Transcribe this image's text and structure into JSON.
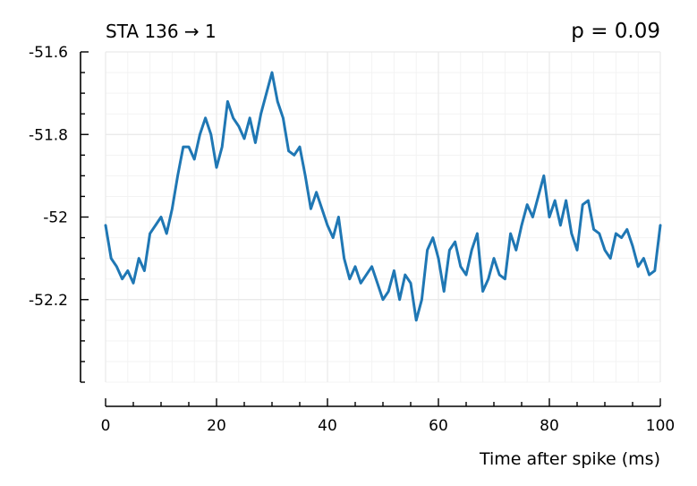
{
  "chart_data": {
    "type": "line",
    "title_left": "STA 136 → 1",
    "title_right": "p = 0.09",
    "xlabel": "Time after spike (ms)",
    "ylabel": "",
    "xlim": [
      0,
      100
    ],
    "ylim": [
      -52.4,
      -51.6
    ],
    "x_ticks": [
      0,
      20,
      40,
      60,
      80,
      100
    ],
    "x_tick_labels": [
      "0",
      "20",
      "40",
      "60",
      "80",
      "100"
    ],
    "y_ticks": [
      -51.6,
      -51.8,
      -52.0,
      -52.2
    ],
    "y_tick_labels": [
      "-51.6",
      "-51.8",
      "-52",
      "-52.2"
    ],
    "grid": true,
    "series": [
      {
        "color": "#1f77b4",
        "x": [
          0,
          1,
          2,
          3,
          4,
          5,
          6,
          7,
          8,
          9,
          10,
          11,
          12,
          13,
          14,
          15,
          16,
          17,
          18,
          19,
          20,
          21,
          22,
          23,
          24,
          25,
          26,
          27,
          28,
          29,
          30,
          31,
          32,
          33,
          34,
          35,
          36,
          37,
          38,
          39,
          40,
          41,
          42,
          43,
          44,
          45,
          46,
          47,
          48,
          49,
          50,
          51,
          52,
          53,
          54,
          55,
          56,
          57,
          58,
          59,
          60,
          61,
          62,
          63,
          64,
          65,
          66,
          67,
          68,
          69,
          70,
          71,
          72,
          73,
          74,
          75,
          76,
          77,
          78,
          79,
          80,
          81,
          82,
          83,
          84,
          85,
          86,
          87,
          88,
          89,
          90,
          91,
          92,
          93,
          94,
          95,
          96,
          97,
          98,
          99,
          100
        ],
        "y": [
          -52.02,
          -52.1,
          -52.12,
          -52.15,
          -52.13,
          -52.16,
          -52.1,
          -52.13,
          -52.04,
          -52.02,
          -52.0,
          -52.04,
          -51.98,
          -51.9,
          -51.83,
          -51.83,
          -51.86,
          -51.8,
          -51.76,
          -51.8,
          -51.88,
          -51.83,
          -51.72,
          -51.76,
          -51.78,
          -51.81,
          -51.76,
          -51.82,
          -51.75,
          -51.7,
          -51.65,
          -51.72,
          -51.76,
          -51.84,
          -51.85,
          -51.83,
          -51.9,
          -51.98,
          -51.94,
          -51.98,
          -52.02,
          -52.05,
          -52.0,
          -52.1,
          -52.15,
          -52.12,
          -52.16,
          -52.14,
          -52.12,
          -52.16,
          -52.2,
          -52.18,
          -52.13,
          -52.2,
          -52.14,
          -52.16,
          -52.25,
          -52.2,
          -52.08,
          -52.05,
          -52.1,
          -52.18,
          -52.08,
          -52.06,
          -52.12,
          -52.14,
          -52.08,
          -52.04,
          -52.18,
          -52.15,
          -52.1,
          -52.14,
          -52.15,
          -52.04,
          -52.08,
          -52.02,
          -51.97,
          -52.0,
          -51.95,
          -51.9,
          -52.0,
          -51.96,
          -52.02,
          -51.96,
          -52.04,
          -52.08,
          -51.97,
          -51.96,
          -52.03,
          -52.04,
          -52.08,
          -52.1,
          -52.04,
          -52.05,
          -52.03,
          -52.07,
          -52.12,
          -52.1,
          -52.14,
          -52.13,
          -52.02
        ]
      }
    ]
  }
}
